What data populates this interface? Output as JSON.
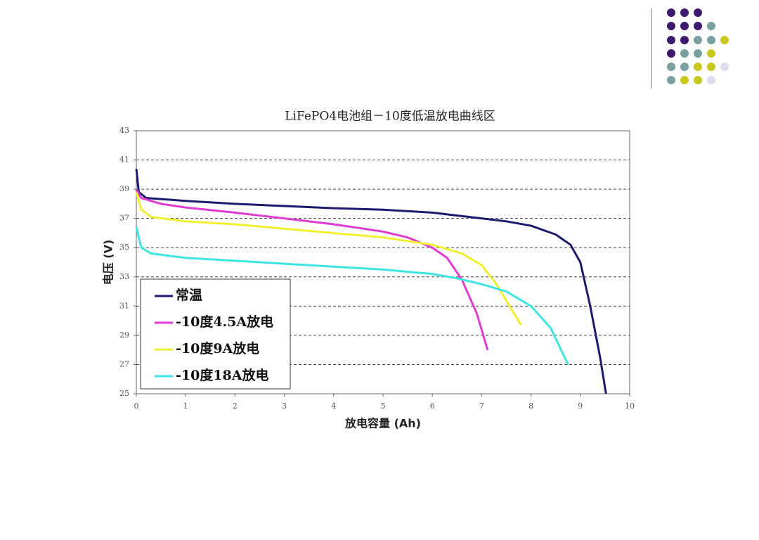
{
  "chart_data": {
    "type": "line",
    "title": "LiFePO4电池组－10度低温放电曲线区",
    "x_label": "放电容量 (Ah)",
    "y_label": "电压 (V)",
    "xlim": [
      0,
      10
    ],
    "xticks": [
      0,
      1,
      2,
      3,
      4,
      5,
      6,
      7,
      8,
      9,
      10
    ],
    "ylim": [
      25,
      43
    ],
    "yticks": [
      25,
      27,
      29,
      31,
      33,
      35,
      37,
      39,
      41,
      43
    ],
    "grid": true,
    "series": [
      {
        "name": "常温",
        "color": "#1c1a6e",
        "x": [
          0,
          0.05,
          0.2,
          1,
          2,
          3,
          4,
          5,
          6,
          7,
          7.5,
          8,
          8.5,
          8.8,
          9,
          9.2,
          9.4,
          9.52
        ],
        "values": [
          40.4,
          38.8,
          38.4,
          38.2,
          38,
          37.85,
          37.7,
          37.6,
          37.4,
          37,
          36.8,
          36.5,
          35.9,
          35.2,
          34,
          31,
          27.5,
          25
        ]
      },
      {
        "name": "-10度4.5A放电",
        "color": "#e03cd0",
        "x": [
          0,
          0.1,
          0.5,
          1,
          2,
          3,
          4,
          5,
          5.5,
          6,
          6.3,
          6.6,
          6.9,
          7.12
        ],
        "values": [
          39,
          38.4,
          38,
          37.75,
          37.4,
          37,
          36.6,
          36.1,
          35.7,
          35,
          34.3,
          32.8,
          30.5,
          28
        ]
      },
      {
        "name": "-10度9A放电",
        "color": "#f0f030",
        "x": [
          0,
          0.1,
          0.3,
          1,
          2,
          3,
          4,
          5,
          6,
          6.6,
          7,
          7.3,
          7.6,
          7.8
        ],
        "values": [
          38.8,
          37.6,
          37.1,
          36.8,
          36.6,
          36.3,
          36,
          35.7,
          35.2,
          34.6,
          33.8,
          32.5,
          30.8,
          29.7
        ]
      },
      {
        "name": "-10度18A放电",
        "color": "#40e4e4",
        "x": [
          0,
          0.1,
          0.3,
          1,
          2,
          3,
          4,
          5,
          6,
          6.5,
          7,
          7.5,
          8,
          8.4,
          8.75
        ],
        "values": [
          36.4,
          35,
          34.6,
          34.3,
          34.1,
          33.9,
          33.7,
          33.5,
          33.2,
          32.9,
          32.5,
          32,
          31,
          29.5,
          27
        ]
      }
    ]
  }
}
